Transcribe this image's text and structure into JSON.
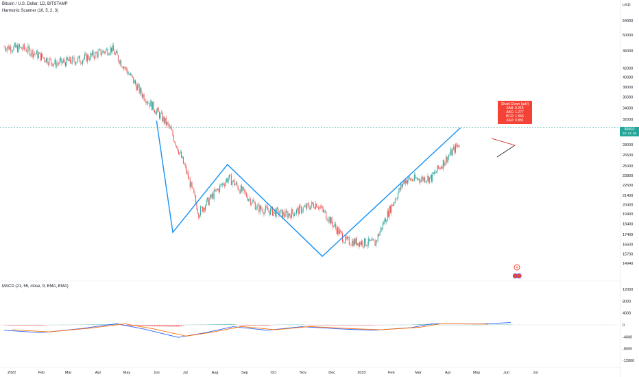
{
  "header": {
    "symbol_line": "Bitcoin / U.S. Dollar, 1D, BITSTAMP",
    "indicator_line": "Harmonic Scanner (10, 5, 2, 3)"
  },
  "macd": {
    "label": "MACD (21, 55, close, 9, EMA, EMA)",
    "y_ticks": [
      "12000",
      "8000",
      "4000",
      "0",
      "-4000",
      "-8000",
      "-12000"
    ]
  },
  "price_axis": {
    "currency": "USD",
    "ticks": [
      "54000",
      "50000",
      "46000",
      "42000",
      "40000",
      "38000",
      "36000",
      "34000",
      "32000",
      "28000",
      "26500",
      "25000",
      "23800",
      "22600",
      "21400",
      "20400",
      "19400",
      "18400",
      "17400",
      "16500",
      "15700",
      "14940"
    ]
  },
  "current_price": {
    "value": "30602",
    "sub": "10: 14: 06",
    "color": "#26a69a"
  },
  "pattern_label": {
    "title": "Shark Down (adv)",
    "lines": [
      "XAB: 0.315",
      "ABC: 1.277",
      "BCD: 1.555",
      "XAD: 0.881"
    ],
    "color": "#f44336"
  },
  "x_axis": {
    "labels": [
      "2022",
      "Feb",
      "Mar",
      "Apr",
      "May",
      "Jun",
      "Jul",
      "Aug",
      "Sep",
      "Oct",
      "Nov",
      "Dec",
      "2023",
      "Feb",
      "Mar",
      "Apr",
      "May",
      "Jun",
      "Jul"
    ]
  },
  "colors": {
    "up": "#26a69a",
    "down": "#ef5350",
    "pattern": "#2196f3",
    "macd_line": "#2962ff",
    "signal_line": "#ff6d00"
  },
  "chart_data": {
    "type": "line",
    "title": "Bitcoin / U.S. Dollar, 1D, BITSTAMP",
    "xlabel": "",
    "ylabel": "",
    "x": [
      "2022-01",
      "2022-02",
      "2022-03",
      "2022-04",
      "2022-05",
      "2022-06",
      "2022-07",
      "2022-08",
      "2022-09",
      "2022-10",
      "2022-11",
      "2022-12",
      "2023-01",
      "2023-02",
      "2023-03",
      "2023-04"
    ],
    "series": [
      {
        "values": [
          46500,
          43000,
          44000,
          46500,
          37000,
          30500,
          19500,
          23500,
          20000,
          19300,
          20500,
          16800,
          16600,
          23200,
          23500,
          28500
        ]
      }
    ],
    "pattern": {
      "x": [
        "2022-06-01",
        "2022-06-18",
        "2022-08-14",
        "2022-11-21",
        "2023-04-14"
      ],
      "y": [
        31800,
        17600,
        25200,
        15500,
        30600
      ]
    },
    "ylim": [
      14000,
      56000
    ],
    "scale": "log",
    "grid": false
  }
}
